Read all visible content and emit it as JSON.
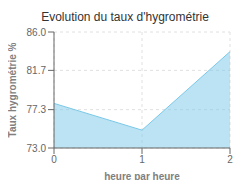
{
  "chart_data": {
    "type": "area",
    "title": "Evolution du taux d'hygrométrie",
    "xlabel": "heure par heure",
    "ylabel": "Taux hygrométrie %",
    "x": [
      0,
      1,
      2
    ],
    "values": [
      78.0,
      75.0,
      83.8
    ],
    "xlim": [
      0,
      2
    ],
    "ylim": [
      73.0,
      86.0
    ],
    "xticks": [
      0,
      1,
      2
    ],
    "yticks": [
      {
        "value": 73.0,
        "label": "73.0"
      },
      77.3,
      81.7,
      {
        "value": 86.0,
        "label": "86.0"
      }
    ],
    "color": "#7ac8e8",
    "grid": true
  }
}
